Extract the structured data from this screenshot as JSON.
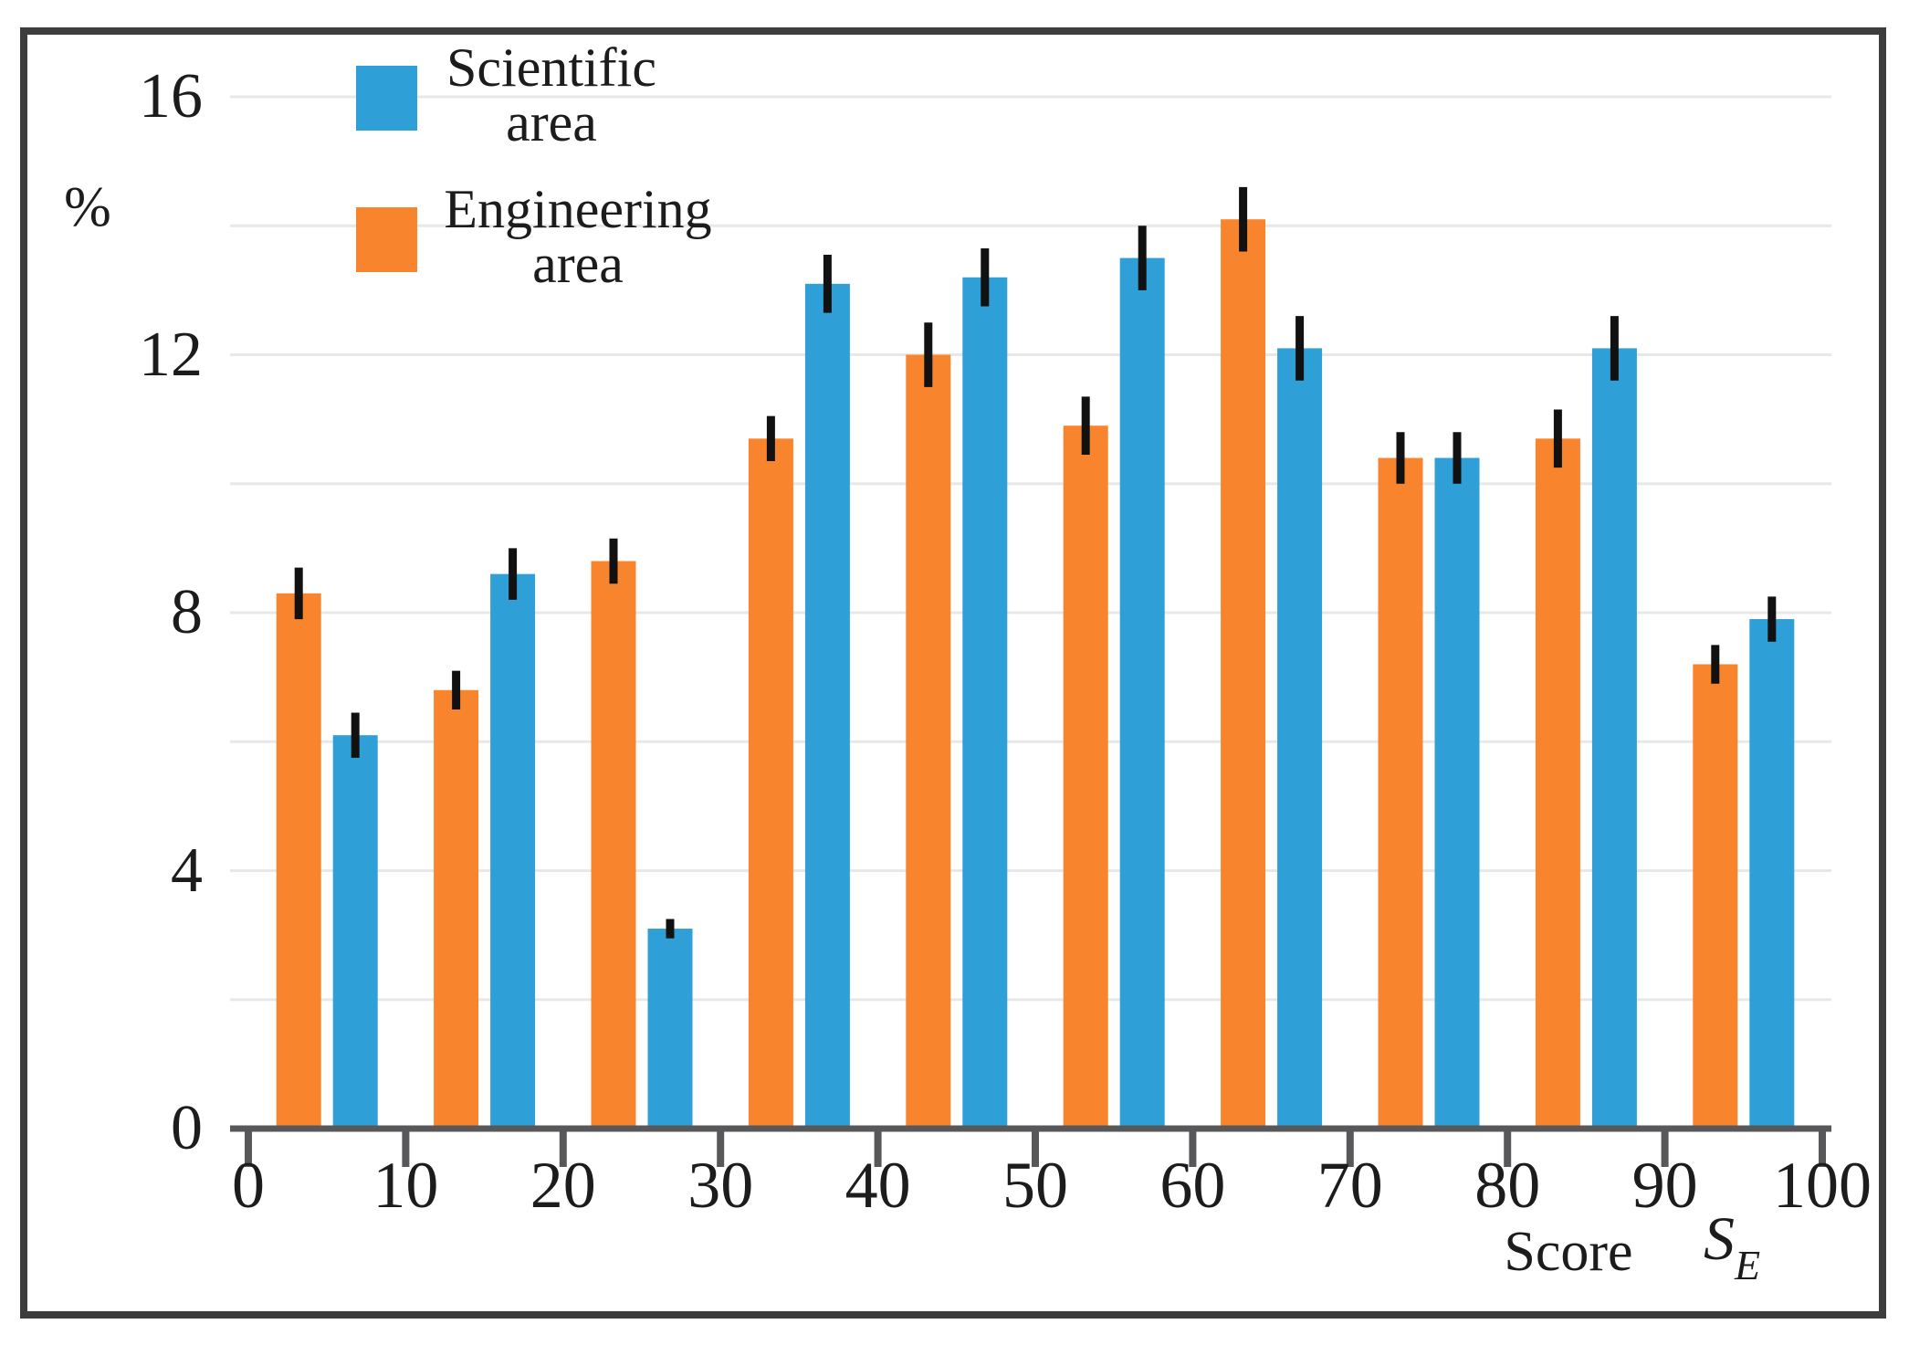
{
  "figure": {
    "background": "#ffffff",
    "frame_color": "#3d3d3d",
    "axis_color": "#58585a",
    "gridline_color": "#e8e8e8",
    "error_bar_color": "#111111",
    "text_color": "#1c1c1c"
  },
  "legend": {
    "position": "top-left",
    "entries": [
      {
        "label_line1": "Scientific",
        "label_line2": "area",
        "color": "#2e9fd7"
      },
      {
        "label_line1": "Engineering",
        "label_line2": "area",
        "color": "#f8852d"
      }
    ]
  },
  "y_axis": {
    "unit_label": "%",
    "tick_labels": [
      0,
      4,
      8,
      12,
      16
    ]
  },
  "x_axis": {
    "tick_labels": [
      0,
      10,
      20,
      30,
      40,
      50,
      60,
      70,
      80,
      90,
      100
    ],
    "label": "Score",
    "symbol": "S",
    "symbol_subscript": "E"
  },
  "chart_data": {
    "type": "bar",
    "title": "",
    "xlabel": "Score (S_E)",
    "ylabel": "%",
    "xlim": [
      0,
      100
    ],
    "ylim": [
      0,
      16.6
    ],
    "grid": "horizontal",
    "gridline_step": 2,
    "legend_position": "top-left",
    "bin_width": 10,
    "categories": [
      "0-10",
      "10-20",
      "20-30",
      "30-40",
      "40-50",
      "50-60",
      "60-70",
      "70-80",
      "80-90",
      "90-100"
    ],
    "series": [
      {
        "name": "Scientific area",
        "color": "#2e9fd7",
        "group_side": "right",
        "values": [
          6.1,
          8.6,
          3.1,
          13.1,
          13.2,
          13.5,
          12.1,
          10.4,
          12.1,
          7.9
        ],
        "errors": [
          0.35,
          0.4,
          0.15,
          0.45,
          0.45,
          0.5,
          0.5,
          0.4,
          0.5,
          0.35
        ]
      },
      {
        "name": "Engineering area",
        "color": "#f8852d",
        "group_side": "left",
        "values": [
          8.3,
          6.8,
          8.8,
          10.7,
          12.0,
          10.9,
          14.1,
          10.4,
          10.7,
          7.2
        ],
        "errors": [
          0.4,
          0.3,
          0.35,
          0.35,
          0.5,
          0.45,
          0.5,
          0.4,
          0.45,
          0.3
        ]
      }
    ]
  }
}
